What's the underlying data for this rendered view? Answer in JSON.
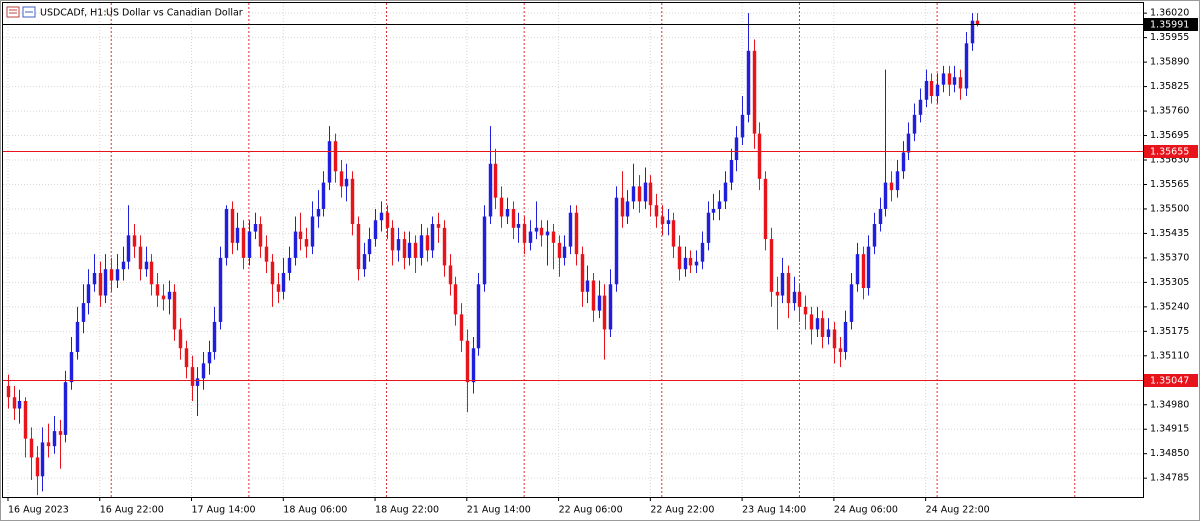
{
  "chart_data": {
    "type": "candlestick",
    "symbol_label": "USDCADf, H1:",
    "description": "US Dollar vs Canadian Dollar",
    "bull_color": "#1f1fdc",
    "bear_color": "#e8141c",
    "grid": true,
    "separator_color": "#e03030",
    "ylim": [
      1.34735,
      1.36047
    ],
    "yticks": [
      {
        "value": 1.3602,
        "label": "1.36020"
      },
      1.35955,
      {
        "value": 1.3589,
        "label": "1.35890"
      },
      1.35825,
      {
        "value": 1.3576,
        "label": "1.35760"
      },
      1.35695,
      {
        "value": 1.3563,
        "label": "1.35630"
      },
      1.35565,
      {
        "value": 1.355,
        "label": "1.35500"
      },
      1.35435,
      {
        "value": 1.3537,
        "label": "1.35370"
      },
      1.35305,
      {
        "value": 1.3524,
        "label": "1.35240"
      },
      1.35175,
      {
        "value": 1.3511,
        "label": "1.35110"
      },
      {
        "value": 1.3498,
        "label": "1.34980"
      },
      1.34915,
      {
        "value": 1.3485,
        "label": "1.34850"
      },
      1.34785
    ],
    "xlim": [
      -0.87,
      197.9
    ],
    "xticks": [
      {
        "value": 0,
        "label": "16 Aug 2023"
      },
      {
        "value": 16,
        "label": "16 Aug 22:00"
      },
      {
        "value": 32,
        "label": "17 Aug 14:00"
      },
      {
        "value": 48,
        "label": "18 Aug 06:00"
      },
      {
        "value": 64,
        "label": "18 Aug 22:00"
      },
      {
        "value": 80,
        "label": "21 Aug 14:00"
      },
      {
        "value": 96,
        "label": "22 Aug 06:00"
      },
      {
        "value": 112,
        "label": "22 Aug 22:00"
      },
      {
        "value": 128,
        "label": "23 Aug 14:00"
      },
      {
        "value": 144,
        "label": "24 Aug 06:00"
      },
      {
        "value": 160,
        "label": "24 Aug 22:00"
      }
    ],
    "day_separators": [
      18,
      42,
      66,
      90,
      114,
      138,
      162,
      186
    ],
    "price_lines": [
      {
        "value": 1.35991,
        "color": "#000000"
      },
      {
        "value": 1.35655,
        "color": "#e8141c"
      },
      {
        "value": 1.35047,
        "color": "#e8141c"
      }
    ],
    "candles": [
      [
        1.3503,
        1.3506,
        1.3497,
        1.35
      ],
      [
        1.35,
        1.3503,
        1.3494,
        1.3497
      ],
      [
        1.3497,
        1.3502,
        1.3493,
        1.3499
      ],
      [
        1.3499,
        1.35,
        1.3484,
        1.3489
      ],
      [
        1.3489,
        1.3492,
        1.3478,
        1.3484
      ],
      [
        1.3484,
        1.3487,
        1.3474,
        1.3479
      ],
      [
        1.3479,
        1.3492,
        1.3475,
        1.3488
      ],
      [
        1.3488,
        1.3493,
        1.3484,
        1.3487
      ],
      [
        1.3487,
        1.3495,
        1.3485,
        1.3491
      ],
      [
        1.3491,
        1.3494,
        1.3481,
        1.349
      ],
      [
        1.349,
        1.3507,
        1.3488,
        1.3504
      ],
      [
        1.3504,
        1.3516,
        1.3502,
        1.3512
      ],
      [
        1.3512,
        1.3524,
        1.351,
        1.352
      ],
      [
        1.352,
        1.353,
        1.3517,
        1.3525
      ],
      [
        1.3525,
        1.3534,
        1.3522,
        1.353
      ],
      [
        1.353,
        1.3538,
        1.3528,
        1.3533
      ],
      [
        1.3533,
        1.3536,
        1.3524,
        1.3527
      ],
      [
        1.3527,
        1.3538,
        1.3525,
        1.3534
      ],
      [
        1.3534,
        1.3537,
        1.3528,
        1.3531
      ],
      [
        1.3531,
        1.3538,
        1.3529,
        1.3534
      ],
      [
        1.3534,
        1.354,
        1.3531,
        1.3536
      ],
      [
        1.3536,
        1.3551,
        1.3534,
        1.3543
      ],
      [
        1.3543,
        1.3546,
        1.3537,
        1.354
      ],
      [
        1.354,
        1.3543,
        1.3531,
        1.3534
      ],
      [
        1.3534,
        1.354,
        1.3532,
        1.3536
      ],
      [
        1.3536,
        1.3538,
        1.3527,
        1.353
      ],
      [
        1.353,
        1.3533,
        1.3524,
        1.3527
      ],
      [
        1.3527,
        1.353,
        1.3523,
        1.3526
      ],
      [
        1.3526,
        1.3531,
        1.3522,
        1.3528
      ],
      [
        1.3528,
        1.353,
        1.3515,
        1.3518
      ],
      [
        1.3518,
        1.3521,
        1.351,
        1.3513
      ],
      [
        1.3513,
        1.3515,
        1.3505,
        1.3508
      ],
      [
        1.3508,
        1.3511,
        1.3499,
        1.3503
      ],
      [
        1.3503,
        1.3508,
        1.3495,
        1.3505
      ],
      [
        1.3505,
        1.3512,
        1.3502,
        1.3509
      ],
      [
        1.3509,
        1.3515,
        1.3506,
        1.3512
      ],
      [
        1.3512,
        1.3524,
        1.351,
        1.352
      ],
      [
        1.352,
        1.354,
        1.3518,
        1.3537
      ],
      [
        1.3537,
        1.3551,
        1.3535,
        1.355
      ],
      [
        1.355,
        1.3552,
        1.3538,
        1.3541
      ],
      [
        1.3541,
        1.3549,
        1.3539,
        1.3545
      ],
      [
        1.3545,
        1.3547,
        1.3534,
        1.3537
      ],
      [
        1.3537,
        1.3547,
        1.3535,
        1.3544
      ],
      [
        1.3544,
        1.3549,
        1.3542,
        1.3546
      ],
      [
        1.3546,
        1.3548,
        1.3537,
        1.354
      ],
      [
        1.354,
        1.3543,
        1.3533,
        1.3536
      ],
      [
        1.3536,
        1.3538,
        1.3524,
        1.353
      ],
      [
        1.353,
        1.3533,
        1.3525,
        1.3528
      ],
      [
        1.3528,
        1.3537,
        1.3526,
        1.3533
      ],
      [
        1.3533,
        1.354,
        1.3531,
        1.3537
      ],
      [
        1.3537,
        1.3548,
        1.3535,
        1.3544
      ],
      [
        1.3544,
        1.3549,
        1.3539,
        1.3542
      ],
      [
        1.3542,
        1.3545,
        1.3537,
        1.354
      ],
      [
        1.354,
        1.3552,
        1.3538,
        1.3548
      ],
      [
        1.3548,
        1.3555,
        1.3545,
        1.355
      ],
      [
        1.355,
        1.356,
        1.3548,
        1.3557
      ],
      [
        1.3557,
        1.3572,
        1.3555,
        1.3568
      ],
      [
        1.3568,
        1.357,
        1.3557,
        1.356
      ],
      [
        1.356,
        1.3563,
        1.3553,
        1.3556
      ],
      [
        1.3556,
        1.3562,
        1.3552,
        1.3558
      ],
      [
        1.3558,
        1.356,
        1.3543,
        1.3546
      ],
      [
        1.3546,
        1.3548,
        1.3531,
        1.3534
      ],
      [
        1.3534,
        1.3541,
        1.3532,
        1.3538
      ],
      [
        1.3538,
        1.3545,
        1.3536,
        1.3542
      ],
      [
        1.3542,
        1.355,
        1.354,
        1.3547
      ],
      [
        1.3547,
        1.3552,
        1.3544,
        1.3549
      ],
      [
        1.3549,
        1.3551,
        1.3542,
        1.3545
      ],
      [
        1.3545,
        1.3547,
        1.3535,
        1.3539
      ],
      [
        1.3539,
        1.3545,
        1.3536,
        1.3542
      ],
      [
        1.3542,
        1.3544,
        1.3534,
        1.3537
      ],
      [
        1.3537,
        1.3544,
        1.3535,
        1.3541
      ],
      [
        1.3541,
        1.3543,
        1.3533,
        1.3537
      ],
      [
        1.3537,
        1.3546,
        1.3535,
        1.3543
      ],
      [
        1.3543,
        1.3545,
        1.3536,
        1.3539
      ],
      [
        1.3539,
        1.3548,
        1.3537,
        1.3546
      ],
      [
        1.3546,
        1.3549,
        1.3541,
        1.3545
      ],
      [
        1.3545,
        1.3547,
        1.3532,
        1.3535
      ],
      [
        1.3535,
        1.3538,
        1.3527,
        1.353
      ],
      [
        1.353,
        1.3532,
        1.3519,
        1.3522
      ],
      [
        1.3522,
        1.3525,
        1.3512,
        1.3515
      ],
      [
        1.3515,
        1.3518,
        1.3496,
        1.3504
      ],
      [
        1.3504,
        1.3516,
        1.3501,
        1.3513
      ],
      [
        1.3513,
        1.3533,
        1.3511,
        1.353
      ],
      [
        1.353,
        1.3551,
        1.3528,
        1.3548
      ],
      [
        1.3548,
        1.3572,
        1.3546,
        1.3562
      ],
      [
        1.3562,
        1.3566,
        1.355,
        1.3553
      ],
      [
        1.3553,
        1.3556,
        1.3545,
        1.3548
      ],
      [
        1.3548,
        1.3553,
        1.3546,
        1.355
      ],
      [
        1.355,
        1.3552,
        1.3542,
        1.3545
      ],
      [
        1.3545,
        1.3549,
        1.3541,
        1.3546
      ],
      [
        1.3546,
        1.3548,
        1.3538,
        1.3541
      ],
      [
        1.3541,
        1.3547,
        1.3539,
        1.3544
      ],
      [
        1.3544,
        1.3552,
        1.3542,
        1.3545
      ],
      [
        1.3545,
        1.3547,
        1.354,
        1.3543
      ],
      [
        1.3543,
        1.3547,
        1.3535,
        1.3544
      ],
      [
        1.3544,
        1.3546,
        1.3534,
        1.3541
      ],
      [
        1.3541,
        1.3543,
        1.3532,
        1.3537
      ],
      [
        1.3537,
        1.3543,
        1.3535,
        1.354
      ],
      [
        1.354,
        1.3551,
        1.3538,
        1.3549
      ],
      [
        1.3549,
        1.3551,
        1.3535,
        1.3538
      ],
      [
        1.3538,
        1.354,
        1.3524,
        1.3528
      ],
      [
        1.3528,
        1.3535,
        1.3525,
        1.3531
      ],
      [
        1.3531,
        1.3533,
        1.352,
        1.3523
      ],
      [
        1.3523,
        1.3531,
        1.3521,
        1.3527
      ],
      [
        1.3527,
        1.353,
        1.351,
        1.3518
      ],
      [
        1.3518,
        1.3534,
        1.3516,
        1.353
      ],
      [
        1.353,
        1.3556,
        1.3528,
        1.3553
      ],
      [
        1.3553,
        1.356,
        1.3545,
        1.3548
      ],
      [
        1.3548,
        1.3555,
        1.3546,
        1.3552
      ],
      [
        1.3552,
        1.3562,
        1.355,
        1.3556
      ],
      [
        1.3556,
        1.3559,
        1.3549,
        1.3552
      ],
      [
        1.3552,
        1.3561,
        1.355,
        1.3557
      ],
      [
        1.3557,
        1.3559,
        1.3548,
        1.3551
      ],
      [
        1.3551,
        1.3554,
        1.3545,
        1.3548
      ],
      [
        1.3548,
        1.3551,
        1.3543,
        1.3546
      ],
      [
        1.3546,
        1.355,
        1.3543,
        1.3547
      ],
      [
        1.3547,
        1.3549,
        1.3537,
        1.354
      ],
      [
        1.354,
        1.3543,
        1.3531,
        1.3534
      ],
      [
        1.3534,
        1.354,
        1.3532,
        1.3537
      ],
      [
        1.3537,
        1.3539,
        1.3533,
        1.3535
      ],
      [
        1.3535,
        1.3539,
        1.3533,
        1.3536
      ],
      [
        1.3536,
        1.3544,
        1.3534,
        1.3541
      ],
      [
        1.3541,
        1.3552,
        1.3539,
        1.3549
      ],
      [
        1.3549,
        1.3554,
        1.3547,
        1.355
      ],
      [
        1.355,
        1.3555,
        1.3547,
        1.3552
      ],
      [
        1.3552,
        1.356,
        1.355,
        1.3557
      ],
      [
        1.3557,
        1.3566,
        1.3555,
        1.3563
      ],
      [
        1.3563,
        1.3572,
        1.356,
        1.3569
      ],
      [
        1.3569,
        1.358,
        1.3567,
        1.3575
      ],
      [
        1.3575,
        1.3602,
        1.3573,
        1.3592
      ],
      [
        1.3592,
        1.3595,
        1.3566,
        1.357
      ],
      [
        1.357,
        1.3573,
        1.3555,
        1.3558
      ],
      [
        1.3558,
        1.356,
        1.3539,
        1.3542
      ],
      [
        1.3542,
        1.3545,
        1.3524,
        1.3528
      ],
      [
        1.3528,
        1.3532,
        1.3518,
        1.3527
      ],
      [
        1.3527,
        1.3537,
        1.3525,
        1.3533
      ],
      [
        1.3533,
        1.3535,
        1.3521,
        1.3525
      ],
      [
        1.3525,
        1.3532,
        1.3523,
        1.3528
      ],
      [
        1.3528,
        1.353,
        1.352,
        1.3524
      ],
      [
        1.3524,
        1.3527,
        1.3518,
        1.3522
      ],
      [
        1.3522,
        1.3524,
        1.3514,
        1.3518
      ],
      [
        1.3518,
        1.3524,
        1.3516,
        1.3521
      ],
      [
        1.3521,
        1.3523,
        1.3513,
        1.3516
      ],
      [
        1.3516,
        1.3521,
        1.3514,
        1.3518
      ],
      [
        1.3518,
        1.352,
        1.3509,
        1.3513
      ],
      [
        1.3513,
        1.3516,
        1.3508,
        1.3512
      ],
      [
        1.3512,
        1.3523,
        1.351,
        1.352
      ],
      [
        1.352,
        1.3533,
        1.3518,
        1.353
      ],
      [
        1.353,
        1.3541,
        1.3528,
        1.3538
      ],
      [
        1.3538,
        1.354,
        1.3526,
        1.3529
      ],
      [
        1.3529,
        1.3543,
        1.3527,
        1.354
      ],
      [
        1.354,
        1.3549,
        1.3538,
        1.3546
      ],
      [
        1.3546,
        1.3553,
        1.3544,
        1.355
      ],
      [
        1.355,
        1.3587,
        1.3548,
        1.3557
      ],
      [
        1.3557,
        1.356,
        1.3552,
        1.3555
      ],
      [
        1.3555,
        1.3563,
        1.3553,
        1.356
      ],
      [
        1.356,
        1.3568,
        1.3558,
        1.3565
      ],
      [
        1.3565,
        1.3573,
        1.3563,
        1.357
      ],
      [
        1.357,
        1.3578,
        1.3568,
        1.3575
      ],
      [
        1.3575,
        1.3582,
        1.3573,
        1.3579
      ],
      [
        1.3579,
        1.3587,
        1.3577,
        1.3584
      ],
      [
        1.3584,
        1.3586,
        1.3578,
        1.358
      ],
      [
        1.358,
        1.3586,
        1.3578,
        1.3583
      ],
      [
        1.3583,
        1.3588,
        1.3581,
        1.3586
      ],
      [
        1.3586,
        1.3588,
        1.358,
        1.3583
      ],
      [
        1.3583,
        1.3588,
        1.3581,
        1.3585
      ],
      [
        1.3585,
        1.3587,
        1.3579,
        1.3582
      ],
      [
        1.3582,
        1.3597,
        1.358,
        1.3594
      ],
      [
        1.3594,
        1.3602,
        1.3592,
        1.36
      ],
      [
        1.36,
        1.3602,
        1.35985,
        1.35991
      ]
    ]
  }
}
